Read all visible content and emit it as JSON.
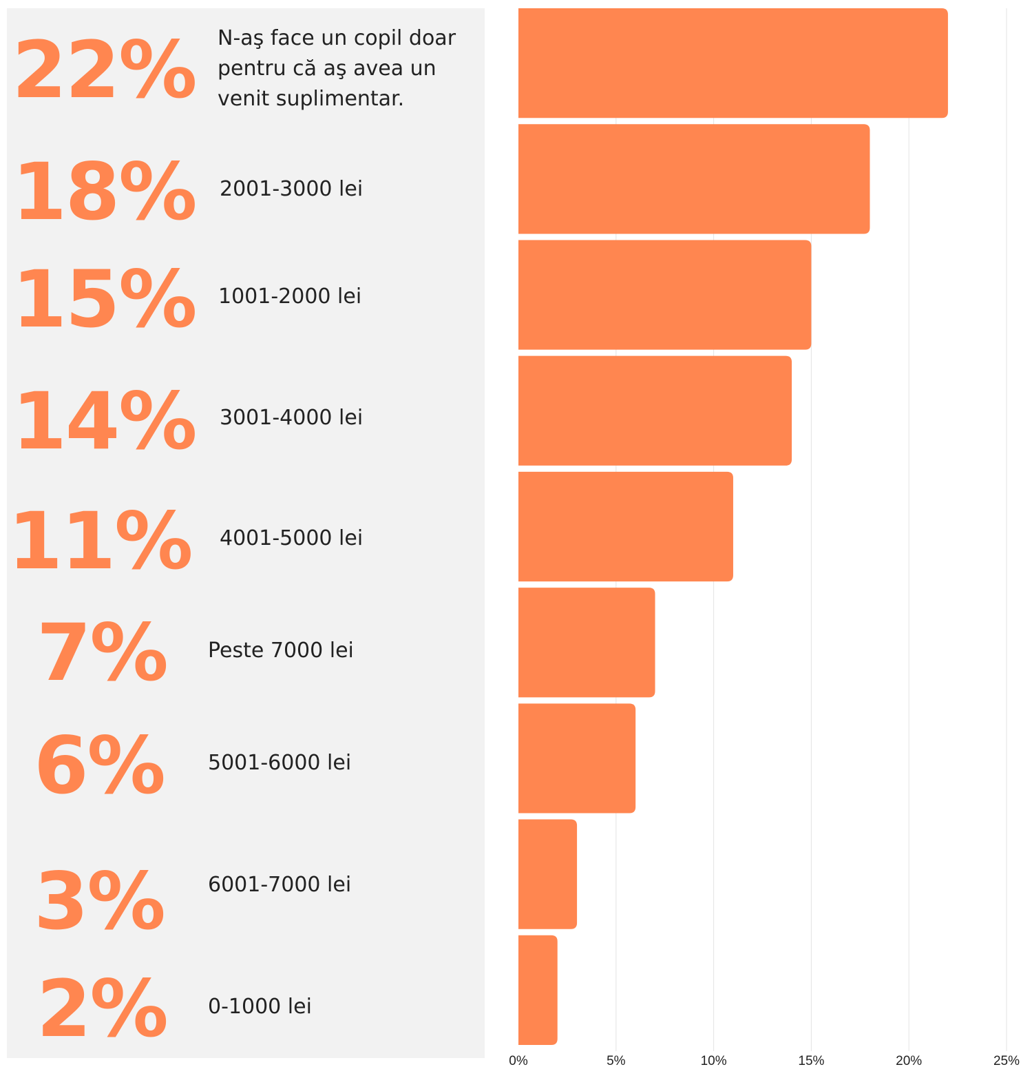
{
  "accent_color": "#ff8650",
  "chart_data": {
    "type": "bar",
    "orientation": "horizontal",
    "categories": [
      "N-aş face un copil doar pentru că aş avea un venit suplimentar.",
      "2001-3000 lei",
      "1001-2000 lei",
      "3001-4000 lei",
      "4001-5000 lei",
      "Peste 7000 lei",
      "5001-6000 lei",
      "6001-7000 lei",
      "0-1000 lei"
    ],
    "values": [
      22,
      18,
      15,
      14,
      11,
      7,
      6,
      3,
      2
    ],
    "value_labels": [
      "22%",
      "18%",
      "15%",
      "14%",
      "11%",
      "7%",
      "6%",
      "3%",
      "2%"
    ],
    "xlim": [
      0,
      25
    ],
    "x_ticks": [
      "0%",
      "5%",
      "10%",
      "15%",
      "20%",
      "25%"
    ],
    "grid": true,
    "legend": "none"
  }
}
